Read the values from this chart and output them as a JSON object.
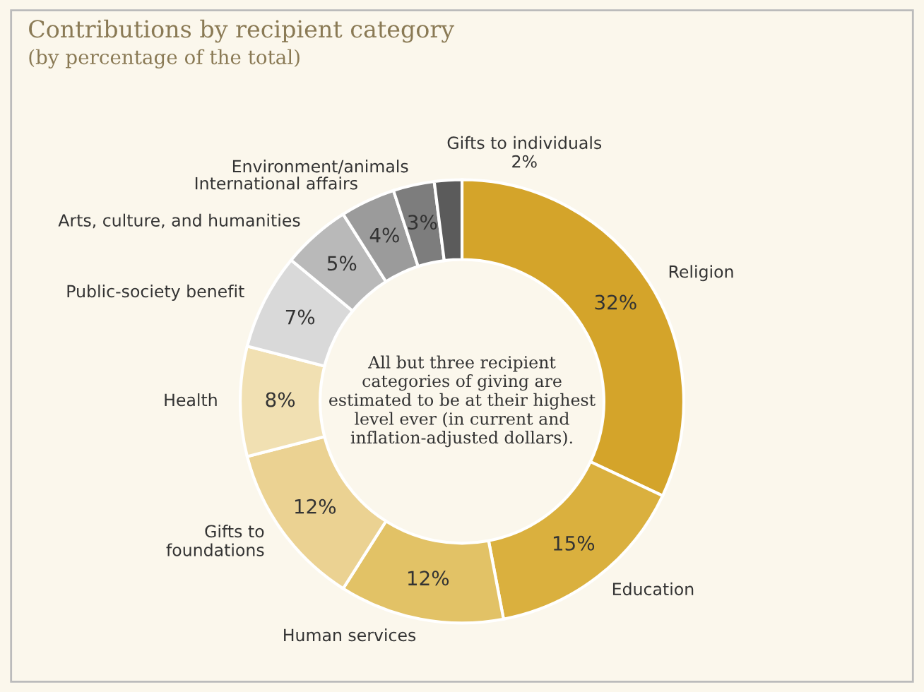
{
  "chart_data": {
    "type": "donut",
    "title": "Contributions by recipient category",
    "subtitle": "(by percentage of the total)",
    "categories": [
      "Religion",
      "Education",
      "Human services",
      "Gifts to\nfoundations",
      "Health",
      "Public-society benefit",
      "Arts, culture, and humanities",
      "International affairs",
      "Environment/animals",
      "Gifts to individuals"
    ],
    "values": [
      32,
      15,
      12,
      12,
      8,
      7,
      5,
      4,
      3,
      2
    ],
    "value_labels": [
      "32%",
      "15%",
      "12%",
      "12%",
      "8%",
      "7%",
      "5%",
      "4%",
      "3%",
      "2%"
    ],
    "colors": [
      "#d4a42a",
      "#dab03e",
      "#e2c266",
      "#ebd292",
      "#f1e0b2",
      "#d9d9d9",
      "#b9b9b9",
      "#9b9b9b",
      "#7d7d7d",
      "#5b5b5b"
    ],
    "annotations": [
      "All but three recipient categories of giving are estimated to be at their highest level ever (in current and inflation-adjusted dollars)."
    ],
    "legend": false
  }
}
